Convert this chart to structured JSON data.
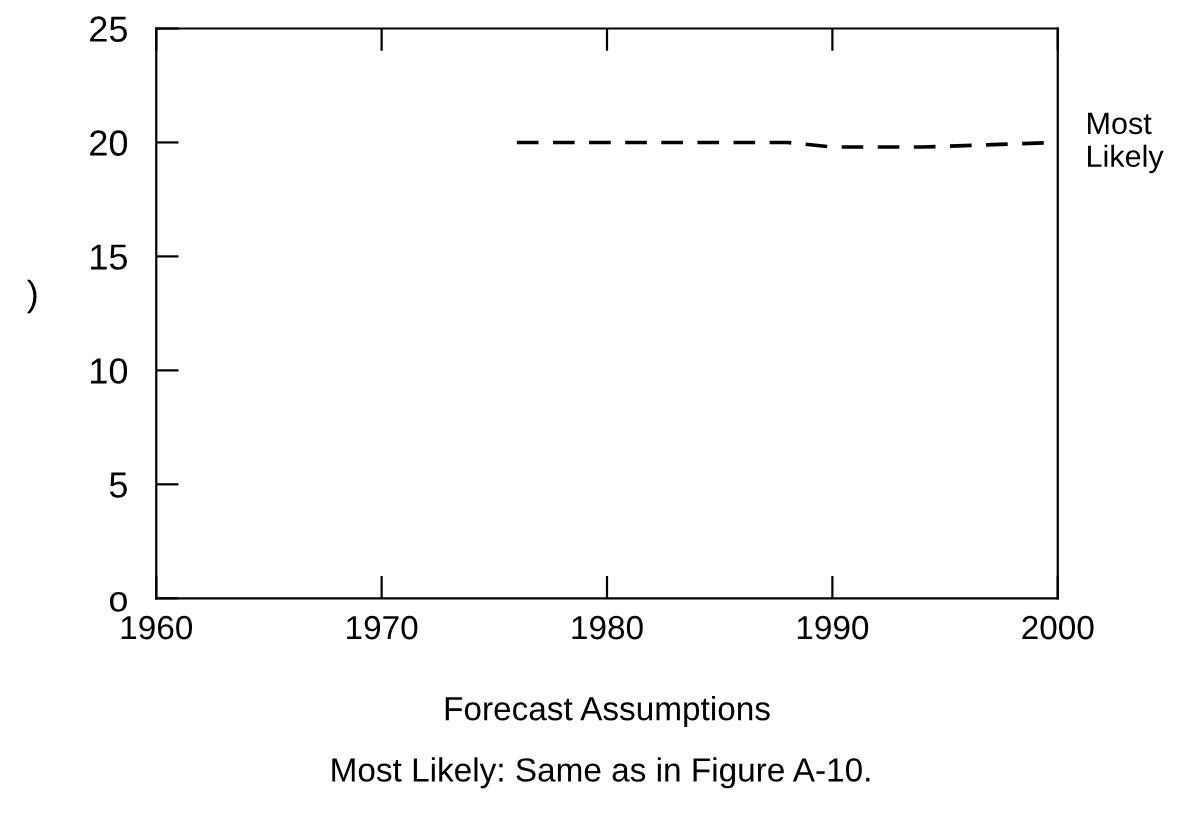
{
  "chart_data": {
    "type": "line",
    "xlabel": "Forecast Assumptions",
    "ylabel": ")",
    "annotations": [
      "Most Likely: Same as in Figure A-10."
    ],
    "xlim": [
      1960,
      2000
    ],
    "xticks": [
      1960,
      1970,
      1980,
      1990,
      2000
    ],
    "ylim": [
      0,
      25
    ],
    "yticks": [
      {
        "value": 0,
        "label": "o"
      },
      5,
      10,
      15,
      20,
      25
    ],
    "series": [
      {
        "name": "Most Likely",
        "color": "#000000",
        "x": [
          1976,
          1984,
          1988,
          1990,
          1994,
          2000
        ],
        "values": [
          20,
          20,
          20,
          19.8,
          19.8,
          20
        ]
      }
    ],
    "line_style": "dashed",
    "marker": "none",
    "grid": false,
    "legend": false
  }
}
